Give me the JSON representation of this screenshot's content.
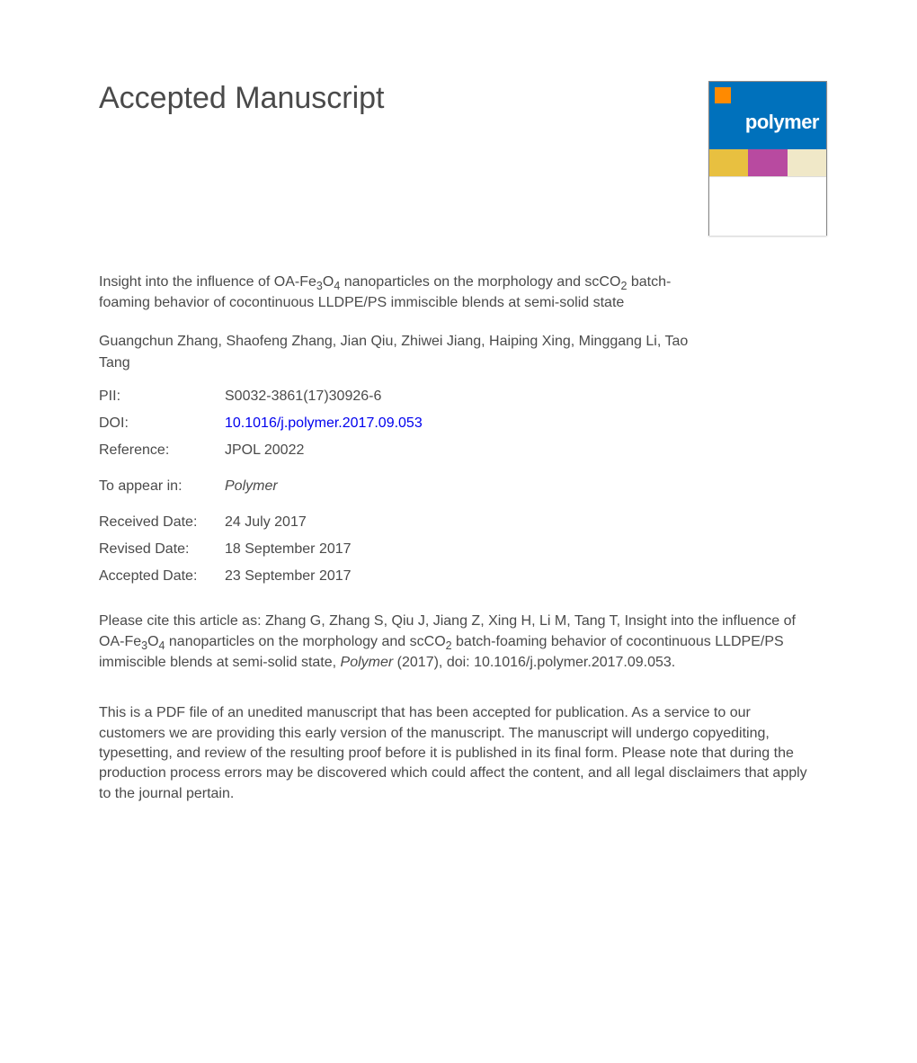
{
  "heading": "Accepted Manuscript",
  "cover_journal": "polymer",
  "article_title_html": "Insight into the influence of OA-Fe<sub>3</sub>O<sub>4</sub> nanoparticles on the morphology and scCO<sub>2</sub> batch-foaming behavior of cocontinuous LLDPE/PS immiscible blends at semi-solid state",
  "authors": "Guangchun Zhang, Shaofeng Zhang, Jian Qiu, Zhiwei Jiang, Haiping Xing, Minggang Li, Tao Tang",
  "meta": {
    "pii_label": "PII:",
    "pii_value": "S0032-3861(17)30926-6",
    "doi_label": "DOI:",
    "doi_value": "10.1016/j.polymer.2017.09.053",
    "ref_label": "Reference:",
    "ref_value": "JPOL 20022",
    "appear_label": "To appear in:",
    "appear_value": "Polymer",
    "received_label": "Received Date:",
    "received_value": "24 July 2017",
    "revised_label": "Revised Date:",
    "revised_value": "18 September 2017",
    "accepted_label": "Accepted Date:",
    "accepted_value": "23 September 2017"
  },
  "citation_prefix": "Please cite this article as: Zhang G, Zhang S, Qiu J, Jiang Z, Xing H, Li M, Tang T, Insight into the influence of OA-Fe",
  "citation_mid1": "O",
  "citation_mid2": " nanoparticles on the morphology and scCO",
  "citation_mid3": " batch-foaming behavior of cocontinuous LLDPE/PS immiscible blends at semi-solid state, ",
  "citation_journal": "Polymer",
  "citation_tail": " (2017), doi: 10.1016/j.polymer.2017.09.053.",
  "disclaimer": "This is a PDF file of an unedited manuscript that has been accepted for publication. As a service to our customers we are providing this early version of the manuscript. The manuscript will undergo copyediting, typesetting, and review of the resulting proof before it is published in its final form. Please note that during the production process errors may be discovered which could affect the content, and all legal disclaimers that apply to the journal pertain.",
  "colors": {
    "text": "#4a4a4a",
    "link": "#0000ee",
    "cover_bg": "#0071bc",
    "cover_logo": "#ff8a00"
  }
}
